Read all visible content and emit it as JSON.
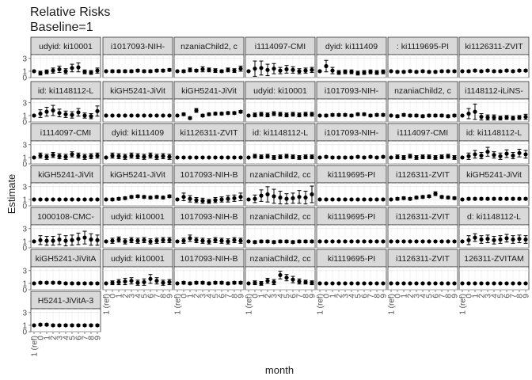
{
  "chart_data": {
    "type": "faceted-point-errorbar",
    "title_line1": "Relative Risks",
    "title_line2": "Baseline=1",
    "xlabel": "month",
    "ylabel": "Estimate",
    "y_ticks": [
      "0",
      "1",
      "3"
    ],
    "y_tick_values": [
      0,
      1,
      3
    ],
    "ylim": [
      0,
      3.6
    ],
    "x_tick_labels": [
      "1 (ref)",
      "0",
      "1",
      "2",
      "3",
      "4",
      "5",
      "6",
      "7",
      "8",
      "9"
    ],
    "grid": true,
    "panels": [
      {
        "label": "udyid: ki10001",
        "estimates": [
          1,
          0.7,
          0.9,
          1.1,
          1.3,
          1,
          1.5,
          1.6,
          0.9,
          0.8,
          1.1
        ],
        "err": [
          0,
          0.3,
          0.3,
          0.4,
          0.5,
          0.4,
          0.6,
          0.7,
          0.3,
          0.3,
          0.4
        ]
      },
      {
        "label": "i1017093-NIH-",
        "estimates": [
          1,
          1,
          1,
          1,
          1,
          1.1,
          1,
          1,
          1.1,
          1.1,
          1.2
        ],
        "err": [
          0,
          0.2,
          0.2,
          0.2,
          0.2,
          0.2,
          0.2,
          0.2,
          0.2,
          0.2,
          0.2
        ]
      },
      {
        "label": "nzaniaChild2, c",
        "estimates": [
          1,
          1,
          1.2,
          1.1,
          1.3,
          1.2,
          1.1,
          1,
          1.2,
          1.1,
          1.4
        ],
        "err": [
          0,
          0.2,
          0.3,
          0.2,
          0.4,
          0.3,
          0.3,
          0.2,
          0.3,
          0.3,
          0.4
        ]
      },
      {
        "label": "i1114097-CMI",
        "estimates": [
          1,
          1.4,
          1.5,
          1.2,
          1.4,
          1.1,
          1.3,
          1.2,
          1,
          1.1,
          1.2
        ],
        "err": [
          0,
          1.2,
          1.1,
          0.9,
          0.8,
          0.5,
          0.6,
          0.5,
          0.4,
          0.4,
          0.4
        ]
      },
      {
        "label": "dyid: ki111409",
        "estimates": [
          1,
          1.8,
          1.1,
          0.8,
          0.9,
          0.9,
          0.7,
          0.8,
          0.9,
          0.8,
          0.9
        ],
        "err": [
          0,
          0.9,
          0.5,
          0.3,
          0.3,
          0.3,
          0.3,
          0.3,
          0.3,
          0.3,
          0.3
        ]
      },
      {
        "label": ": ki1119695-PI",
        "estimates": [
          1,
          0.9,
          0.9,
          1,
          0.9,
          1,
          0.9,
          0.9,
          1,
          1,
          1
        ],
        "err": [
          0,
          0.15,
          0.15,
          0.15,
          0.15,
          0.15,
          0.15,
          0.15,
          0.15,
          0.15,
          0.15
        ]
      },
      {
        "label": "ki1126311-ZVIT",
        "estimates": [
          1,
          1,
          1.1,
          1,
          1.1,
          1,
          1,
          1.1,
          1,
          1.1,
          1.1
        ],
        "err": [
          0,
          0.15,
          0.15,
          0.15,
          0.15,
          0.15,
          0.15,
          0.15,
          0.15,
          0.15,
          0.15
        ]
      },
      {
        "label": "id: ki1148112-L",
        "estimates": [
          1,
          1.3,
          1.6,
          1.8,
          1.4,
          1.2,
          1.1,
          1.5,
          1,
          0.9,
          1.7
        ],
        "err": [
          0,
          0.6,
          0.7,
          0.8,
          0.6,
          0.5,
          0.5,
          0.6,
          0.4,
          0.4,
          0.8
        ]
      },
      {
        "label": "kiGH5241-JiVit",
        "estimates": [
          1,
          1,
          1,
          1,
          1,
          1,
          1,
          1,
          1,
          1,
          1
        ],
        "err": [
          0,
          0.1,
          0.1,
          0.1,
          0.1,
          0.1,
          0.1,
          0.1,
          0.1,
          0.1,
          0.1
        ]
      },
      {
        "label": "kiGH5241-JiVit",
        "estimates": [
          1,
          1.2,
          0.6,
          1.8,
          1,
          1.2,
          1.3,
          1.3,
          1.4,
          1.4,
          1.6
        ],
        "err": [
          0,
          0.2,
          0.2,
          0.3,
          0.2,
          0.2,
          0.2,
          0.2,
          0.2,
          0.2,
          0.2
        ]
      },
      {
        "label": "udyid: ki10001",
        "estimates": [
          1,
          1.1,
          1.2,
          1.1,
          1.3,
          1.2,
          1.1,
          1.2,
          1.1,
          1.2,
          1.2
        ],
        "err": [
          0,
          0.3,
          0.3,
          0.3,
          0.3,
          0.3,
          0.3,
          0.3,
          0.3,
          0.3,
          0.3
        ]
      },
      {
        "label": "i1017093-NIH-",
        "estimates": [
          1,
          1,
          1.1,
          1.1,
          1.1,
          1,
          1.2,
          1.2,
          1,
          1.1,
          1.1
        ],
        "err": [
          0,
          0.2,
          0.2,
          0.2,
          0.2,
          0.2,
          0.2,
          0.2,
          0.2,
          0.2,
          0.2
        ]
      },
      {
        "label": "nzaniaChild2, c",
        "estimates": [
          1,
          0.9,
          1.1,
          1,
          1,
          0.9,
          1,
          1,
          1,
          0.9,
          1
        ],
        "err": [
          0,
          0.2,
          0.2,
          0.2,
          0.2,
          0.2,
          0.2,
          0.2,
          0.2,
          0.2,
          0.2
        ]
      },
      {
        "label": "i1148112-iLiNS-",
        "estimates": [
          1,
          1.3,
          1.6,
          0.8,
          0.7,
          0.7,
          0.6,
          0.7,
          0.6,
          0.7,
          0.8
        ],
        "err": [
          0,
          0.8,
          1.2,
          0.5,
          0.4,
          0.4,
          0.3,
          0.3,
          0.3,
          0.3,
          0.4
        ]
      },
      {
        "label": "i1114097-CMI",
        "estimates": [
          1,
          1.3,
          1.1,
          1.4,
          1.2,
          1.1,
          1.5,
          1.3,
          1.1,
          1.2,
          1.3
        ],
        "err": [
          0,
          0.4,
          0.4,
          0.4,
          0.4,
          0.4,
          0.4,
          0.4,
          0.4,
          0.4,
          0.4
        ]
      },
      {
        "label": "dyid: ki111409",
        "estimates": [
          1,
          1.3,
          1.2,
          1.1,
          1.3,
          1.2,
          1.1,
          1.3,
          1.1,
          1.2,
          1.1
        ],
        "err": [
          0,
          0.4,
          0.4,
          0.4,
          0.4,
          0.4,
          0.4,
          0.4,
          0.4,
          0.4,
          0.4
        ]
      },
      {
        "label": "ki1126311-ZVIT",
        "estimates": [
          1,
          1,
          1,
          1,
          1,
          1,
          1,
          1,
          1,
          1,
          1
        ],
        "err": [
          0,
          0.1,
          0.1,
          0.1,
          0.1,
          0.1,
          0.1,
          0.1,
          0.1,
          0.1,
          0.1
        ]
      },
      {
        "label": "id: ki1148112-L",
        "estimates": [
          1,
          1.2,
          1.1,
          1.2,
          1,
          1.1,
          1.2,
          1.1,
          1,
          1.1,
          1.1
        ],
        "err": [
          0,
          0.3,
          0.3,
          0.3,
          0.3,
          0.3,
          0.3,
          0.3,
          0.3,
          0.3,
          0.3
        ]
      },
      {
        "label": "i1017093-NIH-",
        "estimates": [
          1,
          1.1,
          1,
          1,
          1,
          1,
          1.1,
          1,
          1.1,
          1,
          1.1
        ],
        "err": [
          0,
          0.15,
          0.15,
          0.15,
          0.15,
          0.15,
          0.15,
          0.15,
          0.15,
          0.15,
          0.15
        ]
      },
      {
        "label": "i1114097-CMI",
        "estimates": [
          1,
          1.1,
          1,
          1.2,
          1,
          1.1,
          1.1,
          1,
          1.1,
          1.2,
          1
        ],
        "err": [
          0,
          0.3,
          0.3,
          0.3,
          0.3,
          0.3,
          0.3,
          0.3,
          0.3,
          0.3,
          0.3
        ]
      },
      {
        "label": "id: ki1148112-L",
        "estimates": [
          1,
          1.2,
          1.5,
          1.3,
          1.9,
          1.4,
          1.2,
          1.6,
          1.3,
          1.7,
          1.5
        ],
        "err": [
          0,
          0.5,
          0.6,
          0.5,
          0.7,
          0.5,
          0.5,
          0.6,
          0.5,
          0.6,
          0.6
        ]
      },
      {
        "label": "kiGH5241-JiVit",
        "estimates": [
          1,
          1,
          1,
          1,
          1,
          1,
          1,
          1,
          1,
          1,
          1
        ],
        "err": [
          0,
          0.1,
          0.1,
          0.1,
          0.1,
          0.1,
          0.1,
          0.1,
          0.1,
          0.1,
          0.1
        ]
      },
      {
        "label": "kiGH5241-JiVit",
        "estimates": [
          1,
          1,
          1.1,
          1.2,
          1.4,
          1.5,
          1.4,
          1.3,
          1.4,
          1.3,
          1.5
        ],
        "err": [
          0,
          0.2,
          0.2,
          0.2,
          0.2,
          0.2,
          0.2,
          0.2,
          0.2,
          0.2,
          0.2
        ]
      },
      {
        "label": "1017093-NIH-B",
        "estimates": [
          1,
          1.4,
          1.1,
          0.9,
          0.8,
          0.7,
          0.9,
          1,
          1.1,
          1.2,
          1.4
        ],
        "err": [
          0,
          0.6,
          0.5,
          0.4,
          0.4,
          0.3,
          0.4,
          0.4,
          0.5,
          0.5,
          0.6
        ]
      },
      {
        "label": "nzaniaChild2, cc",
        "estimates": [
          1,
          1.1,
          1.6,
          1.8,
          1.5,
          1.3,
          1.1,
          1.2,
          1.4,
          1.3,
          1.8
        ],
        "err": [
          0,
          0.6,
          0.9,
          1.2,
          1.1,
          1,
          0.8,
          0.8,
          1,
          1,
          1.3
        ]
      },
      {
        "label": "ki1119695-PI",
        "estimates": [
          1,
          1,
          1,
          1,
          1,
          1,
          1,
          1,
          1,
          1,
          1
        ],
        "err": [
          0,
          0.1,
          0.1,
          0.1,
          0.1,
          0.1,
          0.1,
          0.1,
          0.1,
          0.1,
          0.1
        ]
      },
      {
        "label": "i1126311-ZVIT",
        "estimates": [
          1,
          1.1,
          1.2,
          1.1,
          1.3,
          1.4,
          1.5,
          1.9,
          1.4,
          1.3,
          1.2
        ],
        "err": [
          0,
          0.2,
          0.2,
          0.2,
          0.2,
          0.2,
          0.2,
          0.3,
          0.2,
          0.2,
          0.2
        ]
      },
      {
        "label": "kiGH5241-JiVit",
        "estimates": [
          1,
          1.1,
          1.1,
          1.1,
          1.1,
          1.1,
          1.1,
          1.1,
          1.1,
          1.1,
          1.1
        ],
        "err": [
          0,
          0.15,
          0.15,
          0.15,
          0.15,
          0.15,
          0.15,
          0.15,
          0.15,
          0.15,
          0.15
        ]
      },
      {
        "label": "1000108-CMC-",
        "estimates": [
          1,
          1.2,
          1.1,
          1.1,
          1.3,
          1.1,
          1.2,
          1.4,
          1.6,
          1.3,
          1.2
        ],
        "err": [
          0,
          0.7,
          0.7,
          0.7,
          0.8,
          0.8,
          0.8,
          0.9,
          1,
          0.9,
          0.8
        ]
      },
      {
        "label": "udyid: ki10001",
        "estimates": [
          1,
          1.1,
          1.3,
          1,
          1.2,
          1.1,
          1.2,
          1,
          1.1,
          1.2,
          1.2
        ],
        "err": [
          0,
          0.4,
          0.4,
          0.4,
          0.4,
          0.4,
          0.4,
          0.4,
          0.4,
          0.4,
          0.4
        ]
      },
      {
        "label": "1017093-NIH-B",
        "estimates": [
          1,
          1.1,
          1.5,
          1.2,
          1.1,
          1,
          1.2,
          1.1,
          1,
          1.2,
          1.1
        ],
        "err": [
          0,
          0.4,
          0.5,
          0.4,
          0.4,
          0.4,
          0.4,
          0.4,
          0.4,
          0.4,
          0.4
        ]
      },
      {
        "label": "nzaniaChild2, cc",
        "estimates": [
          1,
          0.9,
          1,
          1,
          0.9,
          1,
          1,
          0.9,
          1,
          1,
          1
        ],
        "err": [
          0,
          0.2,
          0.2,
          0.2,
          0.2,
          0.2,
          0.2,
          0.2,
          0.2,
          0.2,
          0.2
        ]
      },
      {
        "label": "ki1119695-PI",
        "estimates": [
          1,
          1,
          1,
          1,
          1,
          1,
          1,
          1,
          1,
          1,
          1
        ],
        "err": [
          0,
          0.1,
          0.1,
          0.1,
          0.1,
          0.1,
          0.1,
          0.1,
          0.1,
          0.1,
          0.1
        ]
      },
      {
        "label": "i1126311-ZVIT",
        "estimates": [
          1,
          1,
          1,
          1,
          1,
          1,
          1,
          1,
          1,
          1,
          1
        ],
        "err": [
          0,
          0.1,
          0.1,
          0.1,
          0.1,
          0.1,
          0.1,
          0.1,
          0.1,
          0.1,
          0.1
        ]
      },
      {
        "label": "d: ki1148112-L",
        "estimates": [
          1,
          1.2,
          1.6,
          1.3,
          1.4,
          1.2,
          1.3,
          1.5,
          1.3,
          1.4,
          1.3
        ],
        "err": [
          0,
          0.7,
          0.6,
          0.6,
          0.6,
          0.6,
          0.6,
          0.6,
          0.6,
          0.6,
          0.6
        ]
      },
      {
        "label": "kiGH5241-JiVitA",
        "estimates": [
          1,
          1.1,
          1.1,
          1.1,
          1.1,
          1,
          1,
          1,
          1,
          1,
          1
        ],
        "err": [
          0,
          0.15,
          0.15,
          0.15,
          0.15,
          0.15,
          0.15,
          0.15,
          0.15,
          0.15,
          0.15
        ]
      },
      {
        "label": "udyid: ki10001",
        "estimates": [
          1,
          1.1,
          1.2,
          1.3,
          1.4,
          1.1,
          1.2,
          1.7,
          1.4,
          1.1,
          1.2
        ],
        "err": [
          0,
          0.3,
          0.4,
          0.5,
          0.5,
          0.4,
          0.5,
          0.7,
          0.5,
          0.4,
          0.4
        ]
      },
      {
        "label": "1017093-NIH-B",
        "estimates": [
          1,
          1.1,
          1,
          1.1,
          1.1,
          1,
          1.1,
          1.1,
          1,
          1.1,
          1.1
        ],
        "err": [
          0,
          0.2,
          0.2,
          0.2,
          0.2,
          0.2,
          0.2,
          0.2,
          0.2,
          0.2,
          0.2
        ]
      },
      {
        "label": "nzaniaChild2, cc",
        "estimates": [
          1,
          1.1,
          1,
          1.4,
          1.2,
          2.3,
          1.9,
          1.6,
          1.3,
          1.2,
          1.1
        ],
        "err": [
          0,
          0.3,
          0.3,
          0.4,
          0.4,
          0.6,
          0.5,
          0.5,
          0.4,
          0.3,
          0.3
        ]
      },
      {
        "label": "ki1119695-PI",
        "estimates": [
          1,
          1,
          1,
          1,
          1,
          1,
          1,
          1,
          1,
          1,
          1
        ],
        "err": [
          0,
          0.1,
          0.1,
          0.1,
          0.1,
          0.1,
          0.1,
          0.1,
          0.1,
          0.1,
          0.1
        ]
      },
      {
        "label": "i1126311-ZVIT",
        "estimates": [
          1,
          1,
          1,
          1,
          1,
          1,
          1,
          1,
          1,
          1,
          1
        ],
        "err": [
          0,
          0.1,
          0.1,
          0.1,
          0.1,
          0.1,
          0.1,
          0.1,
          0.1,
          0.1,
          0.1
        ]
      },
      {
        "label": "126311-ZVITAM",
        "estimates": [
          1,
          1,
          1,
          1,
          1,
          1,
          1,
          1,
          1,
          1,
          1
        ],
        "err": [
          0,
          0.1,
          0.1,
          0.1,
          0.1,
          0.1,
          0.1,
          0.1,
          0.1,
          0.1,
          0.1
        ]
      },
      {
        "label": "H5241-JiVitA-3",
        "estimates": [
          1,
          1.1,
          1.1,
          1,
          1,
          1,
          1,
          1,
          1,
          1,
          1
        ],
        "err": [
          0,
          0.15,
          0.15,
          0.15,
          0.15,
          0.15,
          0.15,
          0.15,
          0.15,
          0.15,
          0.15
        ]
      }
    ],
    "x_axis_columns": [
      0,
      1,
      2,
      3,
      4,
      5,
      6
    ]
  }
}
